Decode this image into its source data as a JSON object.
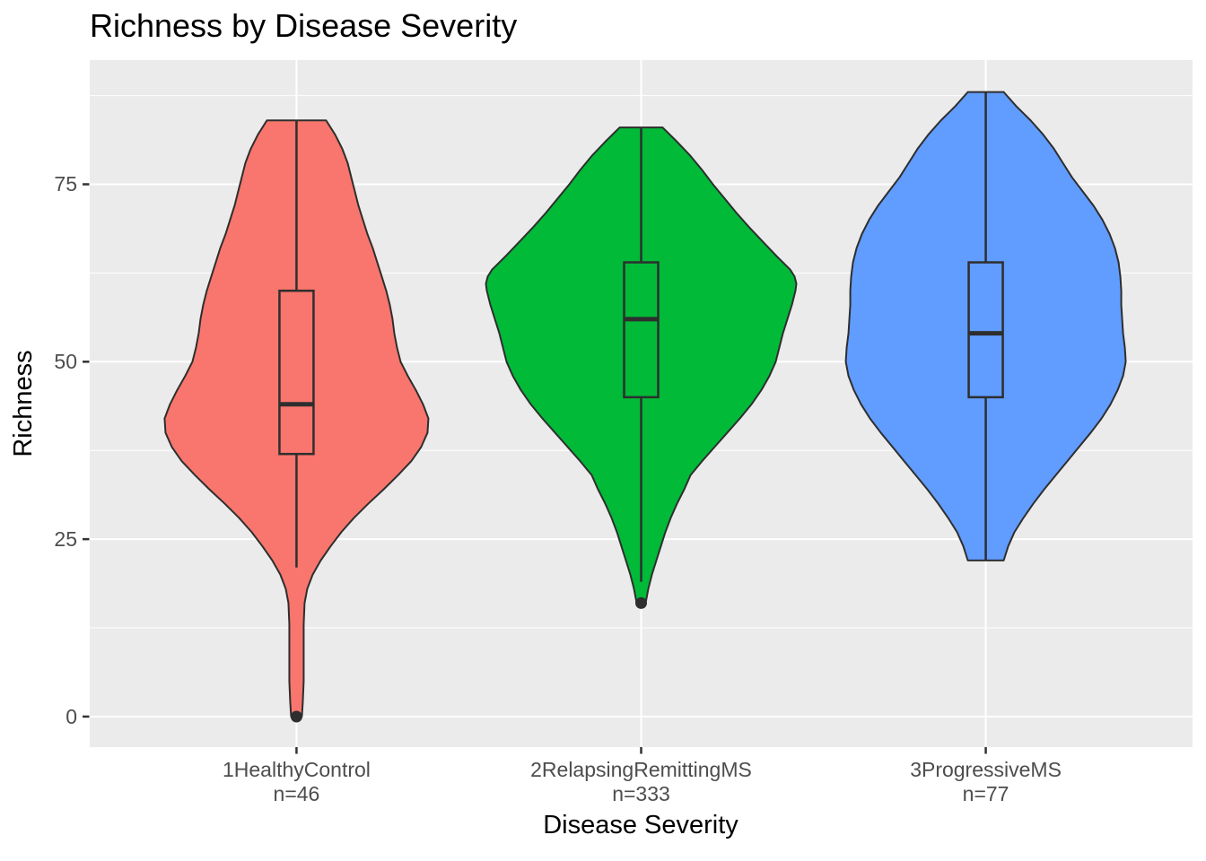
{
  "title": "Richness by Disease Severity",
  "axes": {
    "x": {
      "title": "Disease Severity"
    },
    "y": {
      "title": "Richness",
      "ticks": [
        "0",
        "25",
        "50",
        "75"
      ],
      "tick_values": [
        0,
        25,
        50,
        75
      ]
    }
  },
  "colors": {
    "panel_background": "#EBEBEB",
    "gridline": "#FFFFFF",
    "outline": "#2e2e2e",
    "tick_mark": "#333333",
    "axis_text": "#4d4d4d",
    "title_text": "#000000",
    "group_fills": [
      "#F8766D",
      "#00BA38",
      "#619CFF"
    ]
  },
  "chart_data": {
    "type": "violin",
    "title": "Richness by Disease Severity",
    "xlabel": "Disease Severity",
    "ylabel": "Richness",
    "ylim": [
      -4.3,
      92.5
    ],
    "grid": true,
    "y_major_gridlines": [
      0,
      25,
      50,
      75
    ],
    "y_minor_gridlines": [
      12.5,
      37.5,
      62.5,
      87.5
    ],
    "categories": [
      "1HealthyControl",
      "2RelapsingRemittingMS",
      "3ProgressiveMS"
    ],
    "groups": [
      {
        "label": "1HealthyControl",
        "n_label": "n=46",
        "n": 46,
        "fill": "#F8766D",
        "box": {
          "q1": 37,
          "median": 44,
          "q3": 60,
          "whisker_low": 21,
          "whisker_high": 84
        },
        "outliers": [
          0
        ],
        "violin_min": 0,
        "violin_max": 84,
        "density_profile": [
          [
            84,
            33
          ],
          [
            82,
            43
          ],
          [
            80,
            51
          ],
          [
            78,
            57
          ],
          [
            76,
            61
          ],
          [
            74,
            65
          ],
          [
            72,
            69
          ],
          [
            70,
            74
          ],
          [
            68,
            79
          ],
          [
            66,
            85
          ],
          [
            64,
            90
          ],
          [
            62,
            95
          ],
          [
            60,
            100
          ],
          [
            58,
            104
          ],
          [
            56,
            107
          ],
          [
            54,
            109
          ],
          [
            52,
            112
          ],
          [
            50,
            116
          ],
          [
            48,
            124
          ],
          [
            46,
            133
          ],
          [
            44,
            141
          ],
          [
            42,
            147
          ],
          [
            40,
            146
          ],
          [
            38,
            139
          ],
          [
            36,
            128
          ],
          [
            34,
            113
          ],
          [
            32,
            97
          ],
          [
            30,
            80
          ],
          [
            28,
            64
          ],
          [
            26,
            50
          ],
          [
            24,
            38
          ],
          [
            22,
            27
          ],
          [
            20,
            18
          ],
          [
            18,
            12
          ],
          [
            16,
            9
          ],
          [
            13,
            8
          ],
          [
            9,
            8
          ],
          [
            5,
            8
          ],
          [
            2,
            7
          ],
          [
            0,
            6
          ]
        ]
      },
      {
        "label": "2RelapsingRemittingMS",
        "n_label": "n=333",
        "n": 333,
        "fill": "#00BA38",
        "box": {
          "q1": 45,
          "median": 56,
          "q3": 64,
          "whisker_low": 19,
          "whisker_high": 83
        },
        "outliers": [
          16
        ],
        "violin_min": 16,
        "violin_max": 83,
        "density_profile": [
          [
            83,
            24
          ],
          [
            81,
            40
          ],
          [
            79,
            55
          ],
          [
            77,
            68
          ],
          [
            75,
            80
          ],
          [
            73,
            93
          ],
          [
            71,
            106
          ],
          [
            69,
            120
          ],
          [
            67,
            135
          ],
          [
            65,
            150
          ],
          [
            64,
            158
          ],
          [
            63,
            166
          ],
          [
            62,
            171
          ],
          [
            61,
            173
          ],
          [
            60,
            172
          ],
          [
            58,
            168
          ],
          [
            56,
            163
          ],
          [
            54,
            158
          ],
          [
            52,
            154
          ],
          [
            50,
            150
          ],
          [
            48,
            143
          ],
          [
            46,
            134
          ],
          [
            44,
            123
          ],
          [
            42,
            110
          ],
          [
            40,
            96
          ],
          [
            38,
            82
          ],
          [
            36,
            68
          ],
          [
            34,
            55
          ],
          [
            32,
            48
          ],
          [
            30,
            40
          ],
          [
            28,
            33
          ],
          [
            26,
            27
          ],
          [
            24,
            22
          ],
          [
            22,
            17
          ],
          [
            20,
            12
          ],
          [
            18,
            8
          ],
          [
            16,
            5
          ]
        ]
      },
      {
        "label": "3ProgressiveMS",
        "n_label": "n=77",
        "n": 77,
        "fill": "#619CFF",
        "box": {
          "q1": 45,
          "median": 54,
          "q3": 64,
          "whisker_low": 22,
          "whisker_high": 88
        },
        "outliers": [],
        "violin_min": 22,
        "violin_max": 88,
        "density_profile": [
          [
            88,
            20
          ],
          [
            86,
            34
          ],
          [
            84,
            50
          ],
          [
            82,
            64
          ],
          [
            80,
            76
          ],
          [
            78,
            86
          ],
          [
            76,
            96
          ],
          [
            74,
            108
          ],
          [
            72,
            120
          ],
          [
            70,
            130
          ],
          [
            68,
            138
          ],
          [
            66,
            144
          ],
          [
            64,
            148
          ],
          [
            62,
            150
          ],
          [
            60,
            151
          ],
          [
            58,
            151
          ],
          [
            56,
            152
          ],
          [
            54,
            153
          ],
          [
            52,
            155
          ],
          [
            50,
            156
          ],
          [
            48,
            153
          ],
          [
            46,
            147
          ],
          [
            44,
            139
          ],
          [
            42,
            129
          ],
          [
            40,
            117
          ],
          [
            38,
            104
          ],
          [
            36,
            91
          ],
          [
            34,
            78
          ],
          [
            32,
            65
          ],
          [
            30,
            53
          ],
          [
            28,
            42
          ],
          [
            26,
            32
          ],
          [
            24,
            25
          ],
          [
            22,
            20
          ]
        ]
      }
    ]
  }
}
